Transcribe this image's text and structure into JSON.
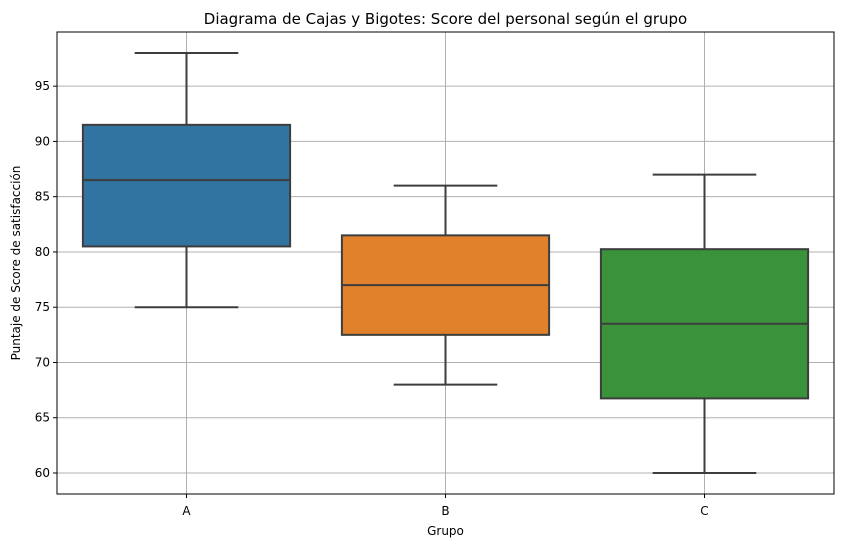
{
  "chart_data": {
    "type": "boxplot",
    "title": "Diagrama de Cajas y Bigotes: Score del personal según el grupo",
    "xlabel": "Grupo",
    "ylabel": "Puntaje de Score de satisfacción",
    "ylim": [
      58.1,
      99.9
    ],
    "yticks": [
      60,
      65,
      70,
      75,
      80,
      85,
      90,
      95
    ],
    "grid": true,
    "categories": [
      "A",
      "B",
      "C"
    ],
    "boxes": [
      {
        "category": "A",
        "whisker_low": 75,
        "q1": 80.5,
        "median": 86.5,
        "q3": 91.5,
        "whisker_high": 98,
        "color": "#3274a1"
      },
      {
        "category": "B",
        "whisker_low": 68,
        "q1": 72.5,
        "median": 77,
        "q3": 81.5,
        "whisker_high": 86,
        "color": "#e1812c"
      },
      {
        "category": "C",
        "whisker_low": 60,
        "q1": 66.75,
        "median": 73.5,
        "q3": 80.25,
        "whisker_high": 87,
        "color": "#3a923a"
      }
    ],
    "line_color": "#3d3d3d",
    "grid_color": "#b0b0b0"
  }
}
